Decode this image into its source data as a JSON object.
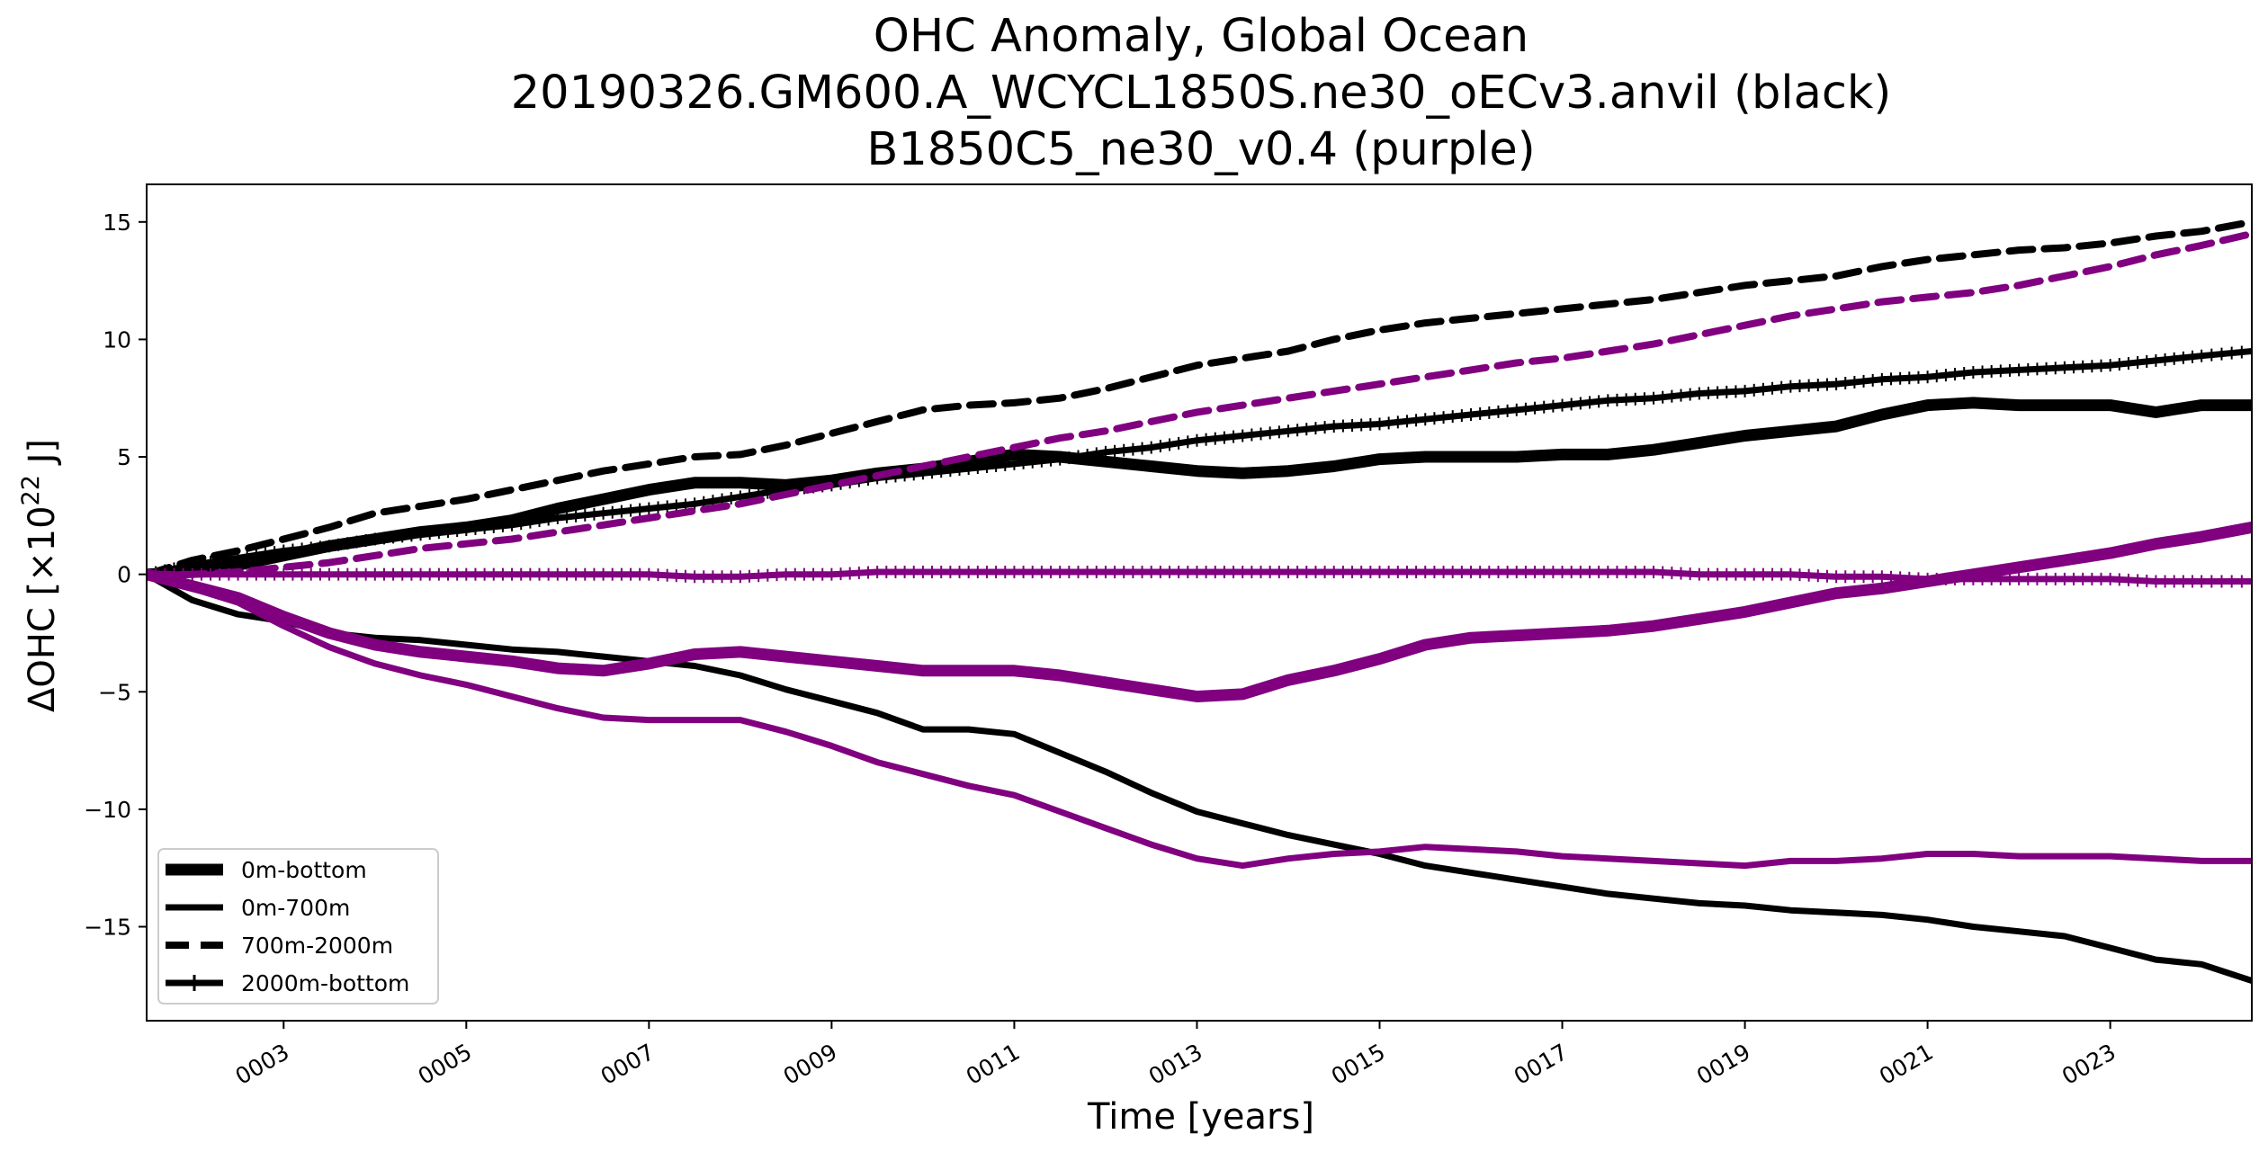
{
  "chart_data": {
    "type": "line",
    "title_lines": [
      "OHC Anomaly, Global Ocean",
      "20190326.GM600.A_WCYCL1850S.ne30_oECv3.anvil (black)",
      "B1850C5_ne30_v0.4 (purple)"
    ],
    "xlabel": "Time [years]",
    "ylabel": "ΔOHC [×10",
    "ylabel_sup": "22",
    "ylabel_unit": " J]",
    "xlim": [
      1.5,
      24.55
    ],
    "ylim": [
      -19.0,
      16.6
    ],
    "xticks": [
      {
        "value": 3,
        "label": "0003"
      },
      {
        "value": 5,
        "label": "0005"
      },
      {
        "value": 7,
        "label": "0007"
      },
      {
        "value": 9,
        "label": "0009"
      },
      {
        "value": 11,
        "label": "0011"
      },
      {
        "value": 13,
        "label": "0013"
      },
      {
        "value": 15,
        "label": "0015"
      },
      {
        "value": 17,
        "label": "0017"
      },
      {
        "value": 19,
        "label": "0019"
      },
      {
        "value": 21,
        "label": "0021"
      },
      {
        "value": 23,
        "label": "0023"
      }
    ],
    "yticks": [
      {
        "value": 15,
        "label": "15"
      },
      {
        "value": 10,
        "label": "10"
      },
      {
        "value": 5,
        "label": "5"
      },
      {
        "value": 0,
        "label": "0"
      },
      {
        "value": -5,
        "label": "−5"
      },
      {
        "value": -10,
        "label": "−10"
      },
      {
        "value": -15,
        "label": "−15"
      }
    ],
    "legend": {
      "placement": "lower-left",
      "entries": [
        {
          "label": "0m-bottom",
          "style": "thick"
        },
        {
          "label": "0m-700m",
          "style": "solid"
        },
        {
          "label": "700m-2000m",
          "style": "dashed"
        },
        {
          "label": "2000m-bottom",
          "style": "plus"
        }
      ]
    },
    "colors": {
      "black": "#000000",
      "purple": "#800080"
    },
    "series": [
      {
        "name": "black 0m-bottom",
        "color": "black",
        "style": "thick",
        "x": [
          1.5,
          2,
          2.5,
          3,
          3.5,
          4,
          4.5,
          5,
          5.5,
          6,
          6.5,
          7,
          7.5,
          8,
          8.5,
          9,
          9.5,
          10,
          10.5,
          11,
          11.5,
          12,
          12.5,
          13,
          13.5,
          14,
          14.5,
          15,
          15.5,
          16,
          16.5,
          17,
          17.5,
          18,
          18.5,
          19,
          19.5,
          20,
          20.5,
          21,
          21.5,
          22,
          22.5,
          23,
          23.5,
          24,
          24.55
        ],
        "values": [
          0,
          0.1,
          0.4,
          0.8,
          1.2,
          1.5,
          1.8,
          2.0,
          2.3,
          2.8,
          3.2,
          3.6,
          3.9,
          3.9,
          3.8,
          4.0,
          4.3,
          4.5,
          4.8,
          5.1,
          5.0,
          4.8,
          4.6,
          4.4,
          4.3,
          4.4,
          4.6,
          4.9,
          5.0,
          5.0,
          5.0,
          5.1,
          5.1,
          5.3,
          5.6,
          5.9,
          6.1,
          6.3,
          6.8,
          7.2,
          7.3,
          7.2,
          7.2,
          7.2,
          6.9,
          7.2,
          7.2
        ]
      },
      {
        "name": "black 0m-700m",
        "color": "black",
        "style": "solid",
        "x": [
          1.5,
          2,
          2.5,
          3,
          3.5,
          4,
          4.5,
          5,
          5.5,
          6,
          6.5,
          7,
          7.5,
          8,
          8.5,
          9,
          9.5,
          10,
          10.5,
          11,
          11.5,
          12,
          12.5,
          13,
          13.5,
          14,
          14.5,
          15,
          15.5,
          16,
          16.5,
          17,
          17.5,
          18,
          18.5,
          19,
          19.5,
          20,
          20.5,
          21,
          21.5,
          22,
          22.5,
          23,
          23.5,
          24,
          24.55
        ],
        "values": [
          0,
          -1.1,
          -1.7,
          -2.0,
          -2.5,
          -2.7,
          -2.8,
          -3.0,
          -3.2,
          -3.3,
          -3.5,
          -3.7,
          -3.9,
          -4.3,
          -4.9,
          -5.4,
          -5.9,
          -6.6,
          -6.6,
          -6.8,
          -7.6,
          -8.4,
          -9.3,
          -10.1,
          -10.6,
          -11.1,
          -11.5,
          -11.9,
          -12.4,
          -12.7,
          -13.0,
          -13.3,
          -13.6,
          -13.8,
          -14.0,
          -14.1,
          -14.3,
          -14.4,
          -14.5,
          -14.7,
          -15.0,
          -15.2,
          -15.4,
          -15.9,
          -16.4,
          -16.6,
          -17.3
        ]
      },
      {
        "name": "black 700m-2000m",
        "color": "black",
        "style": "dashed",
        "x": [
          1.5,
          2,
          2.5,
          3,
          3.5,
          4,
          4.5,
          5,
          5.5,
          6,
          6.5,
          7,
          7.5,
          8,
          8.5,
          9,
          9.5,
          10,
          10.5,
          11,
          11.5,
          12,
          12.5,
          13,
          13.5,
          14,
          14.5,
          15,
          15.5,
          16,
          16.5,
          17,
          17.5,
          18,
          18.5,
          19,
          19.5,
          20,
          20.5,
          21,
          21.5,
          22,
          22.5,
          23,
          23.5,
          24,
          24.55
        ],
        "values": [
          0,
          0.6,
          1.0,
          1.5,
          2.0,
          2.6,
          2.9,
          3.2,
          3.6,
          4.0,
          4.4,
          4.7,
          5.0,
          5.1,
          5.5,
          6.0,
          6.5,
          7.0,
          7.2,
          7.3,
          7.5,
          7.9,
          8.4,
          8.9,
          9.2,
          9.5,
          10.0,
          10.4,
          10.7,
          10.9,
          11.1,
          11.3,
          11.5,
          11.7,
          12.0,
          12.3,
          12.5,
          12.7,
          13.1,
          13.4,
          13.6,
          13.8,
          13.9,
          14.1,
          14.4,
          14.6,
          15.0
        ]
      },
      {
        "name": "black 2000m-bottom",
        "color": "black",
        "style": "plus",
        "x": [
          1.5,
          2,
          2.5,
          3,
          3.5,
          4,
          4.5,
          5,
          5.5,
          6,
          6.5,
          7,
          7.5,
          8,
          8.5,
          9,
          9.5,
          10,
          10.5,
          11,
          11.5,
          12,
          12.5,
          13,
          13.5,
          14,
          14.5,
          15,
          15.5,
          16,
          16.5,
          17,
          17.5,
          18,
          18.5,
          19,
          19.5,
          20,
          20.5,
          21,
          21.5,
          22,
          22.5,
          23,
          23.5,
          24,
          24.55
        ],
        "values": [
          0,
          0.4,
          0.7,
          1.0,
          1.2,
          1.5,
          1.7,
          1.9,
          2.1,
          2.4,
          2.6,
          2.8,
          3.0,
          3.3,
          3.6,
          3.8,
          4.1,
          4.3,
          4.5,
          4.7,
          4.9,
          5.2,
          5.4,
          5.7,
          5.9,
          6.1,
          6.3,
          6.4,
          6.6,
          6.8,
          7.0,
          7.2,
          7.4,
          7.5,
          7.7,
          7.8,
          8.0,
          8.1,
          8.3,
          8.4,
          8.6,
          8.7,
          8.8,
          8.9,
          9.1,
          9.3,
          9.5
        ]
      },
      {
        "name": "purple 0m-bottom",
        "color": "purple",
        "style": "thick",
        "x": [
          1.5,
          2,
          2.5,
          3,
          3.5,
          4,
          4.5,
          5,
          5.5,
          6,
          6.5,
          7,
          7.5,
          8,
          8.5,
          9,
          9.5,
          10,
          10.5,
          11,
          11.5,
          12,
          12.5,
          13,
          13.5,
          14,
          14.5,
          15,
          15.5,
          16,
          16.5,
          17,
          17.5,
          18,
          18.5,
          19,
          19.5,
          20,
          20.5,
          21,
          21.5,
          22,
          22.5,
          23,
          23.5,
          24,
          24.55
        ],
        "values": [
          0,
          -0.5,
          -1.0,
          -1.8,
          -2.5,
          -3.0,
          -3.3,
          -3.5,
          -3.7,
          -4.0,
          -4.1,
          -3.8,
          -3.4,
          -3.3,
          -3.5,
          -3.7,
          -3.9,
          -4.1,
          -4.1,
          -4.1,
          -4.3,
          -4.6,
          -4.9,
          -5.2,
          -5.1,
          -4.5,
          -4.1,
          -3.6,
          -3.0,
          -2.7,
          -2.6,
          -2.5,
          -2.4,
          -2.2,
          -1.9,
          -1.6,
          -1.2,
          -0.8,
          -0.6,
          -0.3,
          0.0,
          0.3,
          0.6,
          0.9,
          1.3,
          1.6,
          2.0
        ]
      },
      {
        "name": "purple 0m-700m",
        "color": "purple",
        "style": "solid",
        "x": [
          1.5,
          2,
          2.5,
          3,
          3.5,
          4,
          4.5,
          5,
          5.5,
          6,
          6.5,
          7,
          7.5,
          8,
          8.5,
          9,
          9.5,
          10,
          10.5,
          11,
          11.5,
          12,
          12.5,
          13,
          13.5,
          14,
          14.5,
          15,
          15.5,
          16,
          16.5,
          17,
          17.5,
          18,
          18.5,
          19,
          19.5,
          20,
          20.5,
          21,
          21.5,
          22,
          22.5,
          23,
          23.5,
          24,
          24.55
        ],
        "values": [
          0,
          -0.6,
          -1.2,
          -2.2,
          -3.1,
          -3.8,
          -4.3,
          -4.7,
          -5.2,
          -5.7,
          -6.1,
          -6.2,
          -6.2,
          -6.2,
          -6.7,
          -7.3,
          -8.0,
          -8.5,
          -9.0,
          -9.4,
          -10.1,
          -10.8,
          -11.5,
          -12.1,
          -12.4,
          -12.1,
          -11.9,
          -11.8,
          -11.6,
          -11.7,
          -11.8,
          -12.0,
          -12.1,
          -12.2,
          -12.3,
          -12.4,
          -12.2,
          -12.2,
          -12.1,
          -11.9,
          -11.9,
          -12.0,
          -12.0,
          -12.0,
          -12.1,
          -12.2,
          -12.2
        ]
      },
      {
        "name": "purple 700m-2000m",
        "color": "purple",
        "style": "dashed",
        "x": [
          1.5,
          2,
          2.5,
          3,
          3.5,
          4,
          4.5,
          5,
          5.5,
          6,
          6.5,
          7,
          7.5,
          8,
          8.5,
          9,
          9.5,
          10,
          10.5,
          11,
          11.5,
          12,
          12.5,
          13,
          13.5,
          14,
          14.5,
          15,
          15.5,
          16,
          16.5,
          17,
          17.5,
          18,
          18.5,
          19,
          19.5,
          20,
          20.5,
          21,
          21.5,
          22,
          22.5,
          23,
          23.5,
          24,
          24.55
        ],
        "values": [
          0,
          0.0,
          0.1,
          0.3,
          0.5,
          0.8,
          1.1,
          1.3,
          1.5,
          1.8,
          2.1,
          2.4,
          2.7,
          3.0,
          3.4,
          3.8,
          4.2,
          4.6,
          5.0,
          5.4,
          5.8,
          6.1,
          6.5,
          6.9,
          7.2,
          7.5,
          7.8,
          8.1,
          8.4,
          8.7,
          9.0,
          9.2,
          9.5,
          9.8,
          10.2,
          10.6,
          11.0,
          11.3,
          11.6,
          11.8,
          12.0,
          12.3,
          12.7,
          13.1,
          13.6,
          14.0,
          14.5
        ]
      },
      {
        "name": "purple 2000m-bottom",
        "color": "purple",
        "style": "plus",
        "x": [
          1.5,
          2,
          2.5,
          3,
          3.5,
          4,
          4.5,
          5,
          5.5,
          6,
          6.5,
          7,
          7.5,
          8,
          8.5,
          9,
          9.5,
          10,
          10.5,
          11,
          11.5,
          12,
          12.5,
          13,
          13.5,
          14,
          14.5,
          15,
          15.5,
          16,
          16.5,
          17,
          17.5,
          18,
          18.5,
          19,
          19.5,
          20,
          20.5,
          21,
          21.5,
          22,
          22.5,
          23,
          23.5,
          24,
          24.55
        ],
        "values": [
          0,
          0.0,
          0.0,
          0.0,
          0.0,
          0.0,
          0.0,
          0.0,
          0.0,
          0.0,
          0.0,
          0.0,
          -0.1,
          -0.1,
          0.0,
          0.0,
          0.1,
          0.1,
          0.1,
          0.1,
          0.1,
          0.1,
          0.1,
          0.1,
          0.1,
          0.1,
          0.1,
          0.1,
          0.1,
          0.1,
          0.1,
          0.1,
          0.1,
          0.1,
          0.0,
          0.0,
          0.0,
          -0.1,
          -0.1,
          -0.2,
          -0.2,
          -0.2,
          -0.2,
          -0.2,
          -0.3,
          -0.3,
          -0.3
        ]
      }
    ]
  }
}
